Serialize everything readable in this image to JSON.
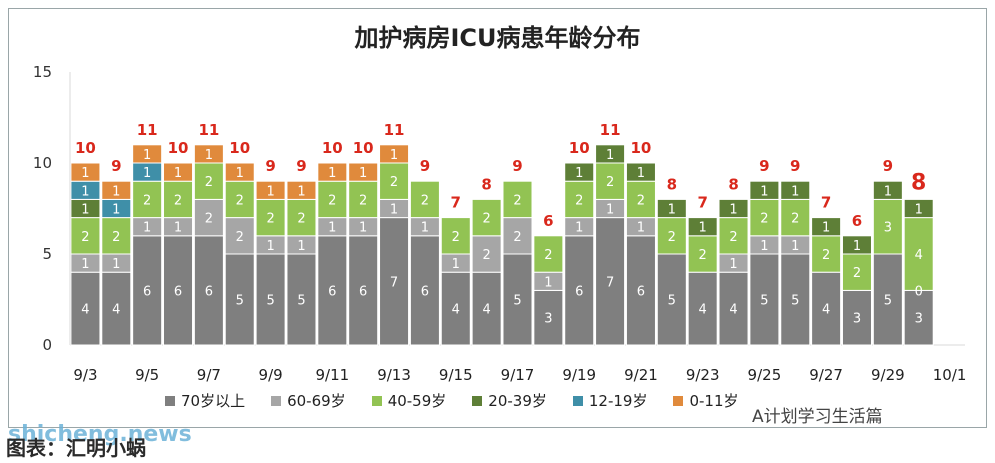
{
  "chart_data": {
    "type": "bar",
    "stacked": true,
    "title": "加护病房ICU病患年龄分布",
    "categories": [
      "9/3",
      "9/4",
      "9/5",
      "9/6",
      "9/7",
      "9/8",
      "9/9",
      "9/10",
      "9/11",
      "9/12",
      "9/13",
      "9/14",
      "9/15",
      "9/16",
      "9/17",
      "9/18",
      "9/19",
      "9/20",
      "9/21",
      "9/22",
      "9/23",
      "9/24",
      "9/25",
      "9/26",
      "9/27",
      "9/28",
      "9/29",
      "9/30",
      "10/1"
    ],
    "x_tick_labels": [
      "9/3",
      "9/5",
      "9/7",
      "9/9",
      "9/11",
      "9/13",
      "9/15",
      "9/17",
      "9/19",
      "9/21",
      "9/23",
      "9/25",
      "9/27",
      "9/29",
      "10/1"
    ],
    "ylim": [
      0,
      15
    ],
    "yticks": [
      0,
      5,
      10,
      15
    ],
    "totals": [
      10,
      9,
      11,
      10,
      11,
      10,
      9,
      9,
      10,
      10,
      11,
      9,
      7,
      8,
      9,
      6,
      10,
      11,
      10,
      8,
      7,
      8,
      9,
      9,
      7,
      6,
      9,
      8,
      null
    ],
    "series": [
      {
        "name": "70岁以上",
        "color": "#7f7f7f",
        "values": [
          4,
          4,
          6,
          6,
          6,
          5,
          5,
          5,
          6,
          6,
          7,
          6,
          4,
          4,
          5,
          3,
          6,
          7,
          6,
          5,
          4,
          4,
          5,
          5,
          4,
          3,
          5,
          3,
          null
        ]
      },
      {
        "name": "60-69岁",
        "color": "#a6a6a6",
        "values": [
          1,
          1,
          1,
          1,
          2,
          2,
          1,
          1,
          1,
          1,
          1,
          1,
          1,
          2,
          2,
          1,
          1,
          1,
          1,
          0,
          0,
          1,
          1,
          1,
          0,
          0,
          0,
          0,
          null
        ]
      },
      {
        "name": "40-59岁",
        "color": "#92c353",
        "values": [
          2,
          2,
          2,
          2,
          2,
          2,
          2,
          2,
          2,
          2,
          2,
          2,
          2,
          2,
          2,
          2,
          2,
          2,
          2,
          2,
          2,
          2,
          2,
          2,
          2,
          2,
          3,
          4,
          null
        ]
      },
      {
        "name": "20-39岁",
        "color": "#5e7f37",
        "values": [
          1,
          0,
          0,
          0,
          0,
          0,
          0,
          0,
          0,
          0,
          0,
          0,
          0,
          0,
          0,
          0,
          1,
          1,
          1,
          1,
          1,
          1,
          1,
          1,
          1,
          1,
          1,
          1,
          null
        ]
      },
      {
        "name": "12-19岁",
        "color": "#3f8fa8",
        "values": [
          1,
          1,
          1,
          0,
          0,
          0,
          0,
          0,
          0,
          0,
          0,
          0,
          0,
          0,
          0,
          0,
          0,
          0,
          0,
          0,
          0,
          0,
          0,
          0,
          0,
          0,
          0,
          0,
          null
        ]
      },
      {
        "name": "0-11岁",
        "color": "#e08a3c",
        "values": [
          1,
          1,
          1,
          1,
          1,
          1,
          1,
          1,
          1,
          1,
          1,
          0,
          0,
          0,
          0,
          0,
          0,
          0,
          0,
          0,
          0,
          0,
          0,
          0,
          0,
          0,
          0,
          0,
          null
        ]
      }
    ],
    "zero_labels": [
      {
        "category": "9/30",
        "series": "60-69岁",
        "text": "0"
      }
    ],
    "grid": false,
    "legend_position": "bottom"
  },
  "footer": {
    "caption": "图表：汇明小蜗",
    "brand": "shicheng.news",
    "account": "A计划学习生活篇"
  }
}
